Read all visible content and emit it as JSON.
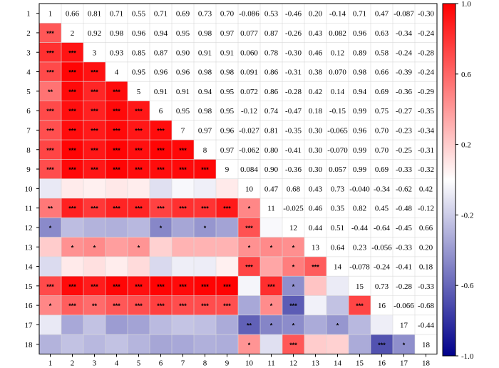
{
  "chart_data": {
    "type": "heatmap",
    "title": "",
    "labels": [
      "1",
      "2",
      "3",
      "4",
      "5",
      "6",
      "7",
      "8",
      "9",
      "10",
      "11",
      "12",
      "13",
      "14",
      "15",
      "16",
      "17",
      "18"
    ],
    "upper_labels": [
      [
        "1",
        "0.66",
        "0.81",
        "0.71",
        "0.55",
        "0.71",
        "0.69",
        "0.73",
        "0.70",
        "-0.086",
        "0.53",
        "-0.46",
        "0.20",
        "-0.14",
        "0.71",
        "0.47",
        "-0.087",
        "-0.30"
      ],
      [
        "",
        "2",
        "0.92",
        "0.98",
        "0.96",
        "0.94",
        "0.95",
        "0.98",
        "0.97",
        "0.077",
        "0.87",
        "-0.26",
        "0.43",
        "0.082",
        "0.96",
        "0.63",
        "-0.34",
        "-0.24"
      ],
      [
        "",
        "",
        "3",
        "0.93",
        "0.85",
        "0.87",
        "0.90",
        "0.91",
        "0.91",
        "0.060",
        "0.78",
        "-0.30",
        "0.46",
        "0.12",
        "0.89",
        "0.58",
        "-0.24",
        "-0.28"
      ],
      [
        "",
        "",
        "",
        "4",
        "0.95",
        "0.96",
        "0.96",
        "0.98",
        "0.98",
        "0.091",
        "0.86",
        "-0.31",
        "0.38",
        "0.070",
        "0.98",
        "0.66",
        "-0.39",
        "-0.24"
      ],
      [
        "",
        "",
        "",
        "",
        "5",
        "0.91",
        "0.91",
        "0.94",
        "0.95",
        "0.072",
        "0.86",
        "-0.28",
        "0.42",
        "0.14",
        "0.94",
        "0.69",
        "-0.36",
        "-0.29"
      ],
      [
        "",
        "",
        "",
        "",
        "",
        "6",
        "0.95",
        "0.98",
        "0.95",
        "-0.12",
        "0.74",
        "-0.47",
        "0.18",
        "-0.15",
        "0.99",
        "0.75",
        "-0.27",
        "-0.35"
      ],
      [
        "",
        "",
        "",
        "",
        "",
        "",
        "7",
        "0.97",
        "0.96",
        "-0.027",
        "0.81",
        "-0.35",
        "0.30",
        "-0.065",
        "0.96",
        "0.70",
        "-0.23",
        "-0.34"
      ],
      [
        "",
        "",
        "",
        "",
        "",
        "",
        "",
        "8",
        "0.97",
        "-0.062",
        "0.80",
        "-0.41",
        "0.30",
        "-0.070",
        "0.99",
        "0.70",
        "-0.25",
        "-0.31"
      ],
      [
        "",
        "",
        "",
        "",
        "",
        "",
        "",
        "",
        "9",
        "0.084",
        "0.90",
        "-0.36",
        "0.30",
        "0.057",
        "0.99",
        "0.69",
        "-0.33",
        "-0.32"
      ],
      [
        "",
        "",
        "",
        "",
        "",
        "",
        "",
        "",
        "",
        "10",
        "0.47",
        "0.68",
        "0.43",
        "0.73",
        "-0.040",
        "-0.34",
        "-0.62",
        "0.42"
      ],
      [
        "",
        "",
        "",
        "",
        "",
        "",
        "",
        "",
        "",
        "",
        "11",
        "-0.025",
        "0.46",
        "0.35",
        "0.82",
        "0.45",
        "-0.48",
        "-0.12"
      ],
      [
        "",
        "",
        "",
        "",
        "",
        "",
        "",
        "",
        "",
        "",
        "",
        "12",
        "0.44",
        "0.51",
        "-0.44",
        "-0.64",
        "-0.45",
        "0.66"
      ],
      [
        "",
        "",
        "",
        "",
        "",
        "",
        "",
        "",
        "",
        "",
        "",
        "",
        "13",
        "0.64",
        "0.23",
        "-0.056",
        "-0.33",
        "0.20"
      ],
      [
        "",
        "",
        "",
        "",
        "",
        "",
        "",
        "",
        "",
        "",
        "",
        "",
        "",
        "14",
        "-0.078",
        "-0.24",
        "-0.41",
        "0.18"
      ],
      [
        "",
        "",
        "",
        "",
        "",
        "",
        "",
        "",
        "",
        "",
        "",
        "",
        "",
        "",
        "15",
        "0.73",
        "-0.28",
        "-0.33"
      ],
      [
        "",
        "",
        "",
        "",
        "",
        "",
        "",
        "",
        "",
        "",
        "",
        "",
        "",
        "",
        "",
        "16",
        "-0.066",
        "-0.68"
      ],
      [
        "",
        "",
        "",
        "",
        "",
        "",
        "",
        "",
        "",
        "",
        "",
        "",
        "",
        "",
        "",
        "",
        "17",
        "-0.44"
      ],
      [
        "",
        "",
        "",
        "",
        "",
        "",
        "",
        "",
        "",
        "",
        "",
        "",
        "",
        "",
        "",
        "",
        "",
        "18"
      ]
    ],
    "significance": [
      [],
      [
        "***"
      ],
      [
        "***",
        "***"
      ],
      [
        "***",
        "***",
        "***"
      ],
      [
        "**",
        "***",
        "***",
        "***"
      ],
      [
        "***",
        "***",
        "***",
        "***",
        "***"
      ],
      [
        "***",
        "***",
        "***",
        "***",
        "***",
        "***"
      ],
      [
        "***",
        "***",
        "***",
        "***",
        "***",
        "***",
        "***"
      ],
      [
        "***",
        "***",
        "***",
        "***",
        "***",
        "***",
        "***",
        "***"
      ],
      [
        "",
        "",
        "",
        "",
        "",
        "",
        "",
        "",
        ""
      ],
      [
        "**",
        "***",
        "***",
        "***",
        "***",
        "***",
        "***",
        "***",
        "***",
        "*"
      ],
      [
        "*",
        "",
        "",
        "",
        "",
        "*",
        "",
        "*",
        "",
        "***",
        ""
      ],
      [
        "",
        "*",
        "*",
        "",
        "*",
        "",
        "",
        "",
        "",
        "*",
        "*",
        "*"
      ],
      [
        "",
        "",
        "",
        "",
        "",
        "",
        "",
        "",
        "",
        "***",
        "",
        "*",
        "***"
      ],
      [
        "***",
        "***",
        "***",
        "***",
        "***",
        "***",
        "***",
        "***",
        "***",
        "",
        "***",
        "*",
        "",
        ""
      ],
      [
        "*",
        "***",
        "**",
        "***",
        "***",
        "***",
        "***",
        "***",
        "***",
        "",
        "*",
        "***",
        "",
        "",
        "***"
      ],
      [
        "",
        "",
        "",
        "",
        "",
        "",
        "",
        "",
        "",
        "**",
        "*",
        "*",
        "",
        "*",
        "",
        ""
      ],
      [
        "",
        "",
        "",
        "",
        "",
        "",
        "",
        "",
        "",
        "*",
        "",
        "***",
        "",
        "",
        "",
        "***",
        "*"
      ]
    ],
    "colorbar": {
      "min": -1.0,
      "max": 1.0,
      "ticks": [
        "1.0",
        "0.6",
        "0.2",
        "-0.2",
        "-0.6",
        "-1.0"
      ],
      "low_color": "#00008b",
      "mid_color": "#ffffff",
      "high_color": "#ff0000"
    }
  }
}
